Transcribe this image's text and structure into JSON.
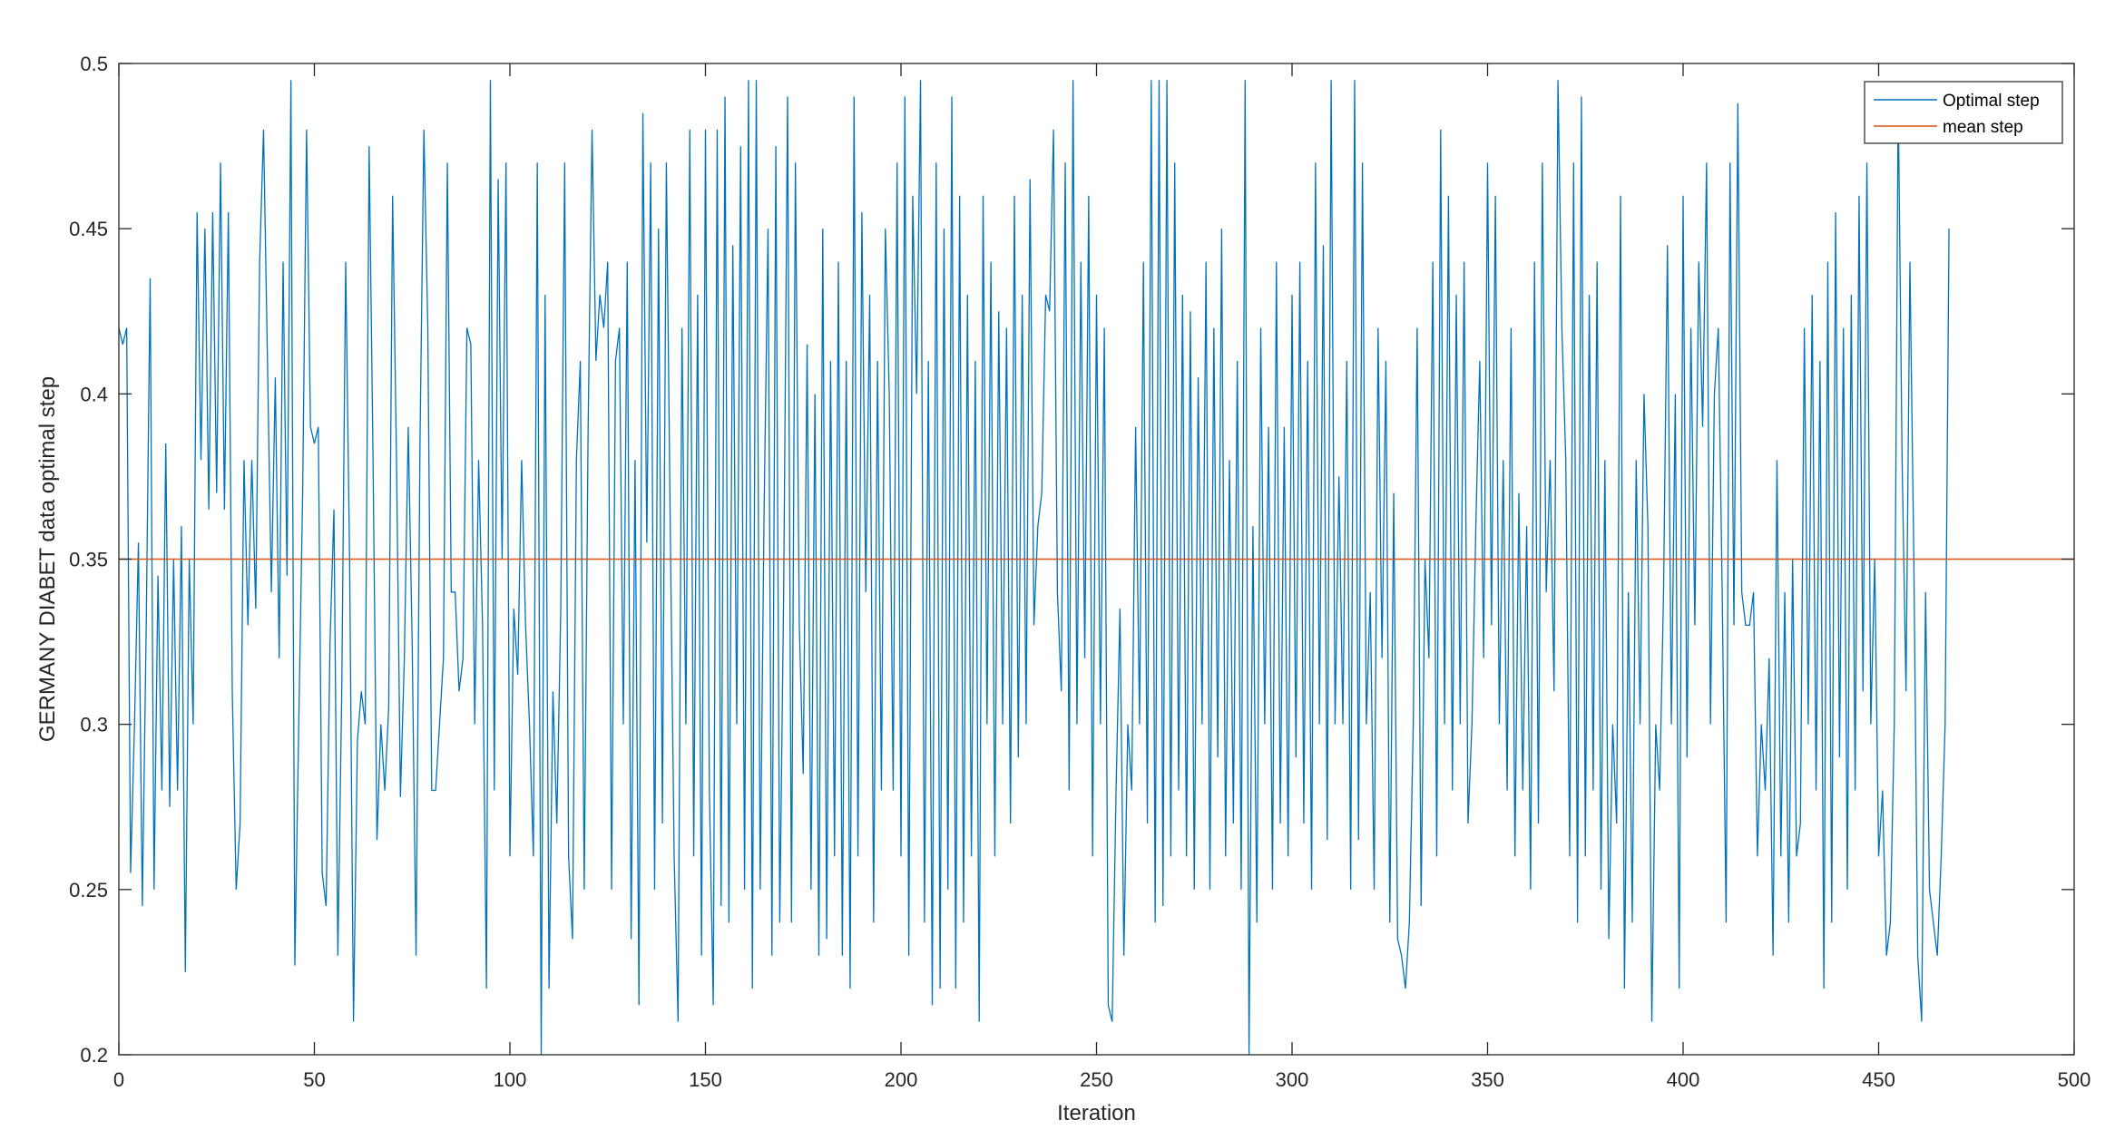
{
  "chart_data": {
    "type": "line",
    "xlabel": "Iteration",
    "ylabel": "GERMANY DIABET data optimal step",
    "xlim": [
      0,
      500
    ],
    "ylim": [
      0.2,
      0.5
    ],
    "xticks": [
      0,
      50,
      100,
      150,
      200,
      250,
      300,
      350,
      400,
      450,
      500
    ],
    "yticks": [
      0.2,
      0.25,
      0.3,
      0.35,
      0.4,
      0.45,
      0.5
    ],
    "xtick_labels": [
      "0",
      "50",
      "100",
      "150",
      "200",
      "250",
      "300",
      "350",
      "400",
      "450",
      "500"
    ],
    "ytick_labels": [
      "0.2",
      "0.25",
      "0.3",
      "0.35",
      "0.4",
      "0.45",
      "0.5"
    ],
    "grid": false,
    "legend_position": "top-right",
    "series": [
      {
        "name": "Optimal step",
        "color": "#0072BD",
        "x_start": 0,
        "x_step": 1,
        "values": [
          0.42,
          0.415,
          0.42,
          0.255,
          0.3,
          0.355,
          0.245,
          0.33,
          0.435,
          0.25,
          0.345,
          0.28,
          0.385,
          0.275,
          0.35,
          0.28,
          0.36,
          0.225,
          0.35,
          0.3,
          0.455,
          0.38,
          0.45,
          0.365,
          0.455,
          0.37,
          0.47,
          0.365,
          0.455,
          0.31,
          0.25,
          0.27,
          0.38,
          0.33,
          0.38,
          0.335,
          0.44,
          0.48,
          0.41,
          0.34,
          0.405,
          0.32,
          0.44,
          0.345,
          0.495,
          0.227,
          0.3,
          0.37,
          0.48,
          0.39,
          0.385,
          0.39,
          0.255,
          0.245,
          0.325,
          0.365,
          0.23,
          0.31,
          0.44,
          0.35,
          0.21,
          0.295,
          0.31,
          0.3,
          0.475,
          0.38,
          0.265,
          0.3,
          0.28,
          0.305,
          0.46,
          0.38,
          0.278,
          0.32,
          0.39,
          0.325,
          0.23,
          0.385,
          0.48,
          0.42,
          0.28,
          0.28,
          0.3,
          0.32,
          0.47,
          0.34,
          0.34,
          0.31,
          0.32,
          0.42,
          0.415,
          0.3,
          0.38,
          0.33,
          0.22,
          0.495,
          0.28,
          0.465,
          0.35,
          0.47,
          0.26,
          0.335,
          0.315,
          0.38,
          0.33,
          0.3,
          0.26,
          0.47,
          0.2,
          0.43,
          0.22,
          0.31,
          0.27,
          0.335,
          0.47,
          0.26,
          0.235,
          0.38,
          0.41,
          0.25,
          0.39,
          0.48,
          0.41,
          0.43,
          0.42,
          0.44,
          0.25,
          0.41,
          0.42,
          0.3,
          0.44,
          0.235,
          0.38,
          0.215,
          0.485,
          0.355,
          0.47,
          0.25,
          0.45,
          0.27,
          0.47,
          0.36,
          0.26,
          0.21,
          0.42,
          0.3,
          0.48,
          0.26,
          0.43,
          0.23,
          0.48,
          0.28,
          0.215,
          0.48,
          0.245,
          0.49,
          0.24,
          0.445,
          0.3,
          0.475,
          0.25,
          0.495,
          0.22,
          0.495,
          0.25,
          0.365,
          0.45,
          0.23,
          0.475,
          0.24,
          0.34,
          0.49,
          0.24,
          0.47,
          0.33,
          0.285,
          0.415,
          0.25,
          0.4,
          0.23,
          0.45,
          0.235,
          0.41,
          0.26,
          0.44,
          0.23,
          0.41,
          0.22,
          0.49,
          0.26,
          0.455,
          0.34,
          0.43,
          0.24,
          0.41,
          0.28,
          0.45,
          0.4,
          0.28,
          0.47,
          0.26,
          0.49,
          0.23,
          0.46,
          0.4,
          0.495,
          0.24,
          0.41,
          0.215,
          0.47,
          0.22,
          0.45,
          0.25,
          0.49,
          0.22,
          0.46,
          0.24,
          0.43,
          0.26,
          0.41,
          0.21,
          0.46,
          0.3,
          0.44,
          0.26,
          0.425,
          0.3,
          0.42,
          0.27,
          0.46,
          0.29,
          0.43,
          0.3,
          0.465,
          0.33,
          0.36,
          0.37,
          0.43,
          0.425,
          0.48,
          0.34,
          0.31,
          0.47,
          0.28,
          0.495,
          0.3,
          0.44,
          0.32,
          0.46,
          0.26,
          0.43,
          0.3,
          0.42,
          0.215,
          0.21,
          0.28,
          0.335,
          0.23,
          0.3,
          0.28,
          0.39,
          0.3,
          0.44,
          0.27,
          0.495,
          0.24,
          0.495,
          0.245,
          0.495,
          0.26,
          0.47,
          0.28,
          0.43,
          0.26,
          0.425,
          0.25,
          0.405,
          0.3,
          0.44,
          0.25,
          0.42,
          0.29,
          0.45,
          0.26,
          0.38,
          0.27,
          0.41,
          0.25,
          0.495,
          0.2,
          0.36,
          0.24,
          0.42,
          0.3,
          0.39,
          0.25,
          0.44,
          0.27,
          0.39,
          0.26,
          0.43,
          0.29,
          0.44,
          0.27,
          0.41,
          0.25,
          0.47,
          0.3,
          0.445,
          0.265,
          0.495,
          0.3,
          0.375,
          0.3,
          0.41,
          0.25,
          0.495,
          0.265,
          0.47,
          0.3,
          0.34,
          0.25,
          0.42,
          0.32,
          0.41,
          0.24,
          0.37,
          0.235,
          0.23,
          0.22,
          0.24,
          0.3,
          0.42,
          0.245,
          0.35,
          0.32,
          0.44,
          0.26,
          0.48,
          0.3,
          0.46,
          0.28,
          0.43,
          0.3,
          0.44,
          0.27,
          0.3,
          0.36,
          0.41,
          0.32,
          0.47,
          0.33,
          0.46,
          0.3,
          0.38,
          0.28,
          0.42,
          0.26,
          0.37,
          0.28,
          0.36,
          0.25,
          0.44,
          0.27,
          0.47,
          0.34,
          0.38,
          0.31,
          0.495,
          0.42,
          0.38,
          0.26,
          0.47,
          0.24,
          0.49,
          0.26,
          0.43,
          0.28,
          0.44,
          0.25,
          0.38,
          0.235,
          0.3,
          0.27,
          0.46,
          0.22,
          0.34,
          0.24,
          0.38,
          0.3,
          0.4,
          0.36,
          0.21,
          0.3,
          0.28,
          0.34,
          0.445,
          0.3,
          0.4,
          0.22,
          0.46,
          0.29,
          0.42,
          0.33,
          0.44,
          0.39,
          0.47,
          0.3,
          0.4,
          0.42,
          0.34,
          0.24,
          0.47,
          0.33,
          0.488,
          0.34,
          0.33,
          0.33,
          0.34,
          0.26,
          0.3,
          0.28,
          0.32,
          0.23,
          0.38,
          0.26,
          0.34,
          0.24,
          0.35,
          0.26,
          0.27,
          0.42,
          0.3,
          0.43,
          0.28,
          0.41,
          0.22,
          0.44,
          0.24,
          0.455,
          0.29,
          0.42,
          0.25,
          0.43,
          0.28,
          0.46,
          0.31,
          0.47,
          0.3,
          0.35,
          0.26,
          0.28,
          0.23,
          0.24,
          0.3,
          0.49,
          0.38,
          0.31,
          0.44,
          0.35,
          0.23,
          0.21,
          0.34,
          0.25,
          0.24,
          0.23,
          0.26,
          0.3,
          0.45
        ],
        "markers": false
      },
      {
        "name": "mean step",
        "color": "#D95319",
        "x": [
          0,
          500
        ],
        "values": [
          0.35,
          0.35
        ]
      }
    ]
  }
}
